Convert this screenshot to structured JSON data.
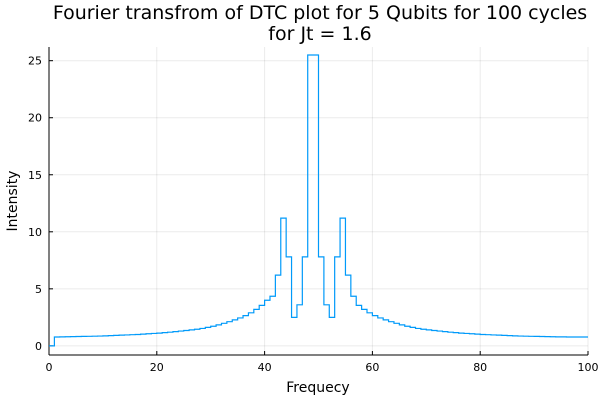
{
  "chart_data": {
    "type": "line",
    "style": "step",
    "title_line1": "Fourier transfrom of DTC plot for 5 Qubits for 100 cycles",
    "title_line2": "for Jt = 1.6",
    "xlabel": "Frequecy",
    "ylabel": "Intensity",
    "xlim": [
      0,
      100
    ],
    "ylim": [
      -0.8,
      26.2
    ],
    "xticks": [
      0,
      20,
      40,
      60,
      80,
      100
    ],
    "yticks": [
      0,
      5,
      10,
      15,
      20,
      25
    ],
    "grid": true,
    "legend": "none",
    "line_color": "#009AFA",
    "series": [
      {
        "x": [
          0,
          1,
          2,
          3,
          4,
          5,
          6,
          7,
          8,
          9,
          10,
          11,
          12,
          13,
          14,
          15,
          16,
          17,
          18,
          19,
          20,
          21,
          22,
          23,
          24,
          25,
          26,
          27,
          28,
          29,
          30,
          31,
          32,
          33,
          34,
          35,
          36,
          37,
          38,
          39,
          40,
          41,
          42,
          43,
          44,
          45,
          46,
          47,
          48,
          49,
          50,
          51,
          52,
          53,
          54,
          55,
          56,
          57,
          58,
          59,
          60,
          61,
          62,
          63,
          64,
          65,
          66,
          67,
          68,
          69,
          70,
          71,
          72,
          73,
          74,
          75,
          76,
          77,
          78,
          79,
          80,
          81,
          82,
          83,
          84,
          85,
          86,
          87,
          88,
          89,
          90,
          91,
          92,
          93,
          94,
          95,
          96,
          97,
          98,
          99,
          100
        ],
        "values": [
          0.0,
          0.78,
          0.79,
          0.8,
          0.81,
          0.82,
          0.83,
          0.84,
          0.85,
          0.86,
          0.88,
          0.9,
          0.92,
          0.94,
          0.96,
          0.98,
          1.0,
          1.03,
          1.06,
          1.09,
          1.12,
          1.16,
          1.2,
          1.25,
          1.3,
          1.35,
          1.4,
          1.46,
          1.53,
          1.62,
          1.72,
          1.84,
          1.98,
          2.12,
          2.28,
          2.45,
          2.65,
          2.9,
          3.2,
          3.55,
          4.0,
          4.35,
          6.2,
          11.2,
          7.8,
          2.5,
          3.6,
          7.8,
          25.5,
          25.5,
          7.8,
          3.6,
          2.5,
          7.8,
          11.2,
          6.2,
          4.35,
          3.55,
          3.2,
          2.9,
          2.65,
          2.45,
          2.28,
          2.12,
          1.98,
          1.84,
          1.72,
          1.62,
          1.53,
          1.46,
          1.4,
          1.35,
          1.3,
          1.25,
          1.2,
          1.16,
          1.12,
          1.09,
          1.06,
          1.03,
          1.0,
          0.98,
          0.96,
          0.94,
          0.92,
          0.9,
          0.88,
          0.86,
          0.85,
          0.84,
          0.83,
          0.82,
          0.81,
          0.8,
          0.79,
          0.79,
          0.78,
          0.78,
          0.78,
          0.78,
          0.78
        ]
      }
    ]
  }
}
